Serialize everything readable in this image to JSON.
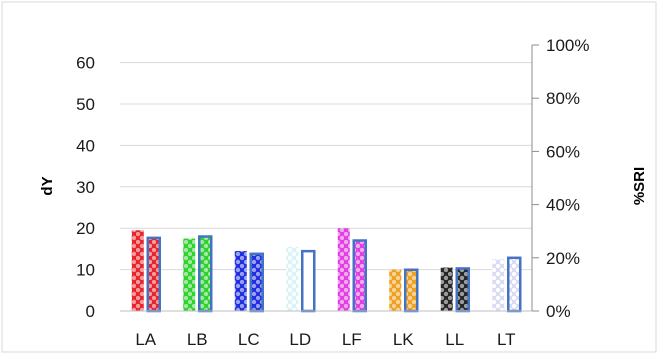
{
  "chart_data": {
    "type": "bar",
    "categories": [
      "LA",
      "LB",
      "LC",
      "LD",
      "LF",
      "LK",
      "LL",
      "LT"
    ],
    "series": [
      {
        "axis": "left",
        "values": [
          19.5,
          17.5,
          14.5,
          15.5,
          20.0,
          10.0,
          10.5,
          12.5
        ],
        "colors": [
          "#e8232b",
          "#2fd12f",
          "#1f2ee0",
          "#d7f4f8",
          "#e040e0",
          "#f0a020",
          "#262626",
          "#d9dcf4"
        ]
      },
      {
        "axis": "right",
        "values": [
          27.5,
          28.0,
          21.5,
          22.5,
          26.5,
          15.5,
          16.0,
          20.0
        ],
        "colors": [
          "#e8232b",
          "#2fd12f",
          "#1f2ee0",
          "#ffffff",
          "#e040e0",
          "#f0a020",
          "#262626",
          "#d9dcf4"
        ],
        "outline": "#4472c4"
      }
    ],
    "ylabel": "dY",
    "y2label": "%SRI",
    "ylim": [
      0,
      70
    ],
    "y2lim": [
      0,
      100
    ],
    "yticks": [
      "0",
      "10",
      "20",
      "30",
      "40",
      "50",
      "60"
    ],
    "y2ticks": [
      "0%",
      "20%",
      "40%",
      "60%",
      "80%",
      "100%"
    ],
    "grid": true,
    "legend": "none"
  }
}
